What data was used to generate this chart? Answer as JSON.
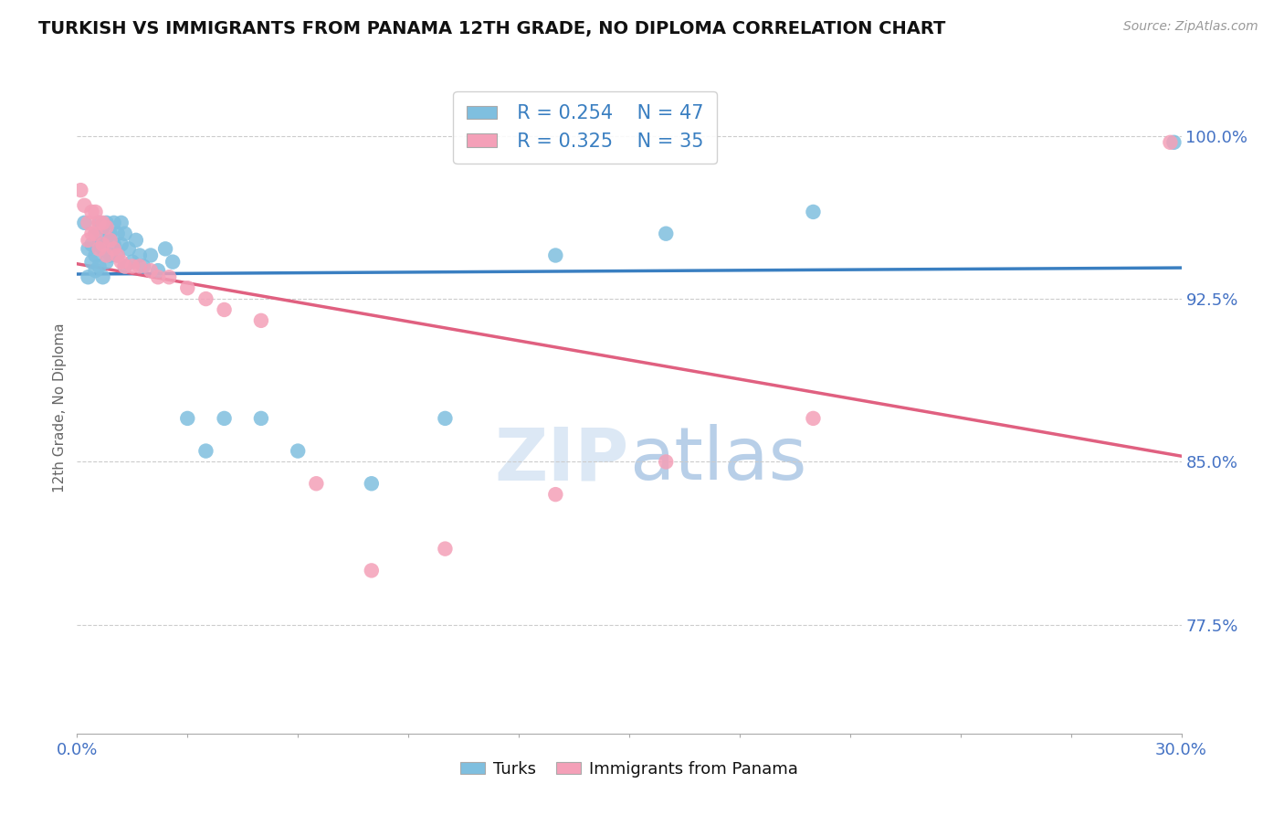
{
  "title": "TURKISH VS IMMIGRANTS FROM PANAMA 12TH GRADE, NO DIPLOMA CORRELATION CHART",
  "source_text": "Source: ZipAtlas.com",
  "ylabel": "12th Grade, No Diploma",
  "xmin": 0.0,
  "xmax": 0.3,
  "ymin": 0.725,
  "ymax": 1.025,
  "blue_color": "#7fbfdf",
  "pink_color": "#f4a0b8",
  "blue_line_color": "#3a7fc1",
  "pink_line_color": "#e06080",
  "legend_R_blue": "R = 0.254",
  "legend_N_blue": "N = 47",
  "legend_R_pink": "R = 0.325",
  "legend_N_pink": "N = 35",
  "turks_x": [
    0.002,
    0.003,
    0.003,
    0.004,
    0.004,
    0.005,
    0.005,
    0.005,
    0.006,
    0.006,
    0.006,
    0.007,
    0.007,
    0.007,
    0.008,
    0.008,
    0.008,
    0.009,
    0.009,
    0.01,
    0.01,
    0.011,
    0.011,
    0.012,
    0.012,
    0.013,
    0.013,
    0.014,
    0.015,
    0.016,
    0.017,
    0.018,
    0.02,
    0.022,
    0.024,
    0.026,
    0.03,
    0.035,
    0.04,
    0.05,
    0.06,
    0.08,
    0.1,
    0.13,
    0.16,
    0.2,
    0.298
  ],
  "turks_y": [
    0.96,
    0.948,
    0.935,
    0.95,
    0.942,
    0.955,
    0.945,
    0.938,
    0.96,
    0.95,
    0.94,
    0.958,
    0.948,
    0.935,
    0.96,
    0.952,
    0.942,
    0.955,
    0.945,
    0.96,
    0.95,
    0.955,
    0.945,
    0.96,
    0.95,
    0.955,
    0.94,
    0.948,
    0.942,
    0.952,
    0.945,
    0.94,
    0.945,
    0.938,
    0.948,
    0.942,
    0.87,
    0.855,
    0.87,
    0.87,
    0.855,
    0.84,
    0.87,
    0.945,
    0.955,
    0.965,
    0.997
  ],
  "panama_x": [
    0.001,
    0.002,
    0.003,
    0.003,
    0.004,
    0.004,
    0.005,
    0.005,
    0.006,
    0.006,
    0.007,
    0.007,
    0.008,
    0.008,
    0.009,
    0.01,
    0.011,
    0.012,
    0.013,
    0.015,
    0.017,
    0.02,
    0.022,
    0.025,
    0.03,
    0.035,
    0.04,
    0.05,
    0.065,
    0.08,
    0.1,
    0.13,
    0.16,
    0.2,
    0.297
  ],
  "panama_y": [
    0.975,
    0.968,
    0.96,
    0.952,
    0.965,
    0.955,
    0.965,
    0.955,
    0.96,
    0.948,
    0.96,
    0.95,
    0.958,
    0.945,
    0.952,
    0.948,
    0.945,
    0.942,
    0.94,
    0.94,
    0.94,
    0.938,
    0.935,
    0.935,
    0.93,
    0.925,
    0.92,
    0.915,
    0.84,
    0.8,
    0.81,
    0.835,
    0.85,
    0.87,
    0.997
  ]
}
